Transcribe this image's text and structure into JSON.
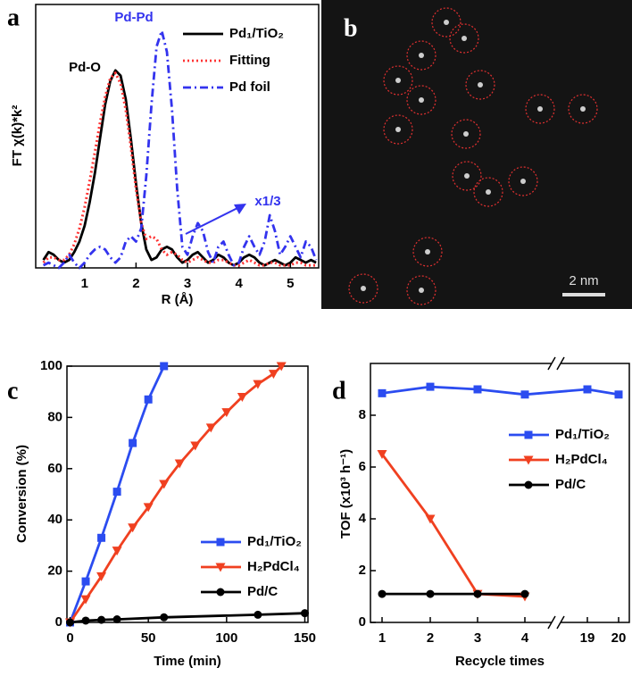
{
  "chart_data": [
    {
      "type": "line",
      "panel_label": "a",
      "xlabel": "R (Å)",
      "ylabel": "FT χ(k)*k²",
      "x": [
        0.2,
        0.3,
        0.4,
        0.5,
        0.6,
        0.7,
        0.8,
        0.9,
        1.0,
        1.1,
        1.2,
        1.3,
        1.4,
        1.5,
        1.6,
        1.7,
        1.8,
        1.9,
        2.0,
        2.1,
        2.2,
        2.3,
        2.4,
        2.5,
        2.6,
        2.7,
        2.8,
        2.9,
        3.0,
        3.1,
        3.2,
        3.3,
        3.4,
        3.5,
        3.6,
        3.7,
        3.8,
        3.9,
        4.0,
        4.1,
        4.2,
        4.3,
        4.4,
        4.5,
        4.6,
        4.7,
        4.8,
        4.9,
        5.0,
        5.1,
        5.2,
        5.3,
        5.4,
        5.5
      ],
      "xlim": [
        0.05,
        5.55
      ],
      "xticks": [
        1,
        2,
        3,
        4,
        5
      ],
      "ylim": [
        0,
        1
      ],
      "legend": "upper right",
      "annotations": [
        {
          "text": "Pd-O",
          "color": "#000000"
        },
        {
          "text": "Pd-Pd",
          "color": "#3333ee"
        },
        {
          "text": "x1/3",
          "color": "#3333ee"
        }
      ],
      "series": [
        {
          "name": "Pd₁/TiO₂",
          "color": "#000000",
          "style": "solid",
          "values": [
            0.03,
            0.06,
            0.05,
            0.03,
            0.02,
            0.03,
            0.06,
            0.1,
            0.16,
            0.25,
            0.36,
            0.49,
            0.62,
            0.71,
            0.75,
            0.73,
            0.64,
            0.49,
            0.32,
            0.17,
            0.07,
            0.03,
            0.04,
            0.07,
            0.08,
            0.07,
            0.04,
            0.02,
            0.03,
            0.05,
            0.06,
            0.04,
            0.02,
            0.03,
            0.05,
            0.04,
            0.02,
            0.01,
            0.02,
            0.04,
            0.05,
            0.04,
            0.02,
            0.01,
            0.02,
            0.03,
            0.02,
            0.01,
            0.02,
            0.04,
            0.03,
            0.02,
            0.03,
            0.02
          ]
        },
        {
          "name": "Fitting",
          "color": "#ff3333",
          "style": "dotted",
          "values": [
            0.02,
            0.04,
            0.04,
            0.03,
            0.03,
            0.05,
            0.09,
            0.15,
            0.23,
            0.33,
            0.44,
            0.55,
            0.65,
            0.72,
            0.74,
            0.7,
            0.6,
            0.46,
            0.3,
            0.17,
            0.11,
            0.12,
            0.11,
            0.07,
            0.05,
            0.06,
            0.05,
            0.03,
            0.02,
            0.03,
            0.04,
            0.03,
            0.02,
            0.02,
            0.03,
            0.03,
            0.02,
            0.01,
            0.01,
            0.02,
            0.03,
            0.02,
            0.01,
            0.01,
            0.02,
            0.02,
            0.01,
            0.01,
            0.01,
            0.02,
            0.02,
            0.01,
            0.01,
            0.01
          ]
        },
        {
          "name": "Pd foil",
          "color": "#3333ee",
          "style": "dashdot",
          "values": [
            0.01,
            0.02,
            0.01,
            0.0,
            0.02,
            0.05,
            0.02,
            0.0,
            0.02,
            0.05,
            0.07,
            0.08,
            0.07,
            0.04,
            0.02,
            0.04,
            0.1,
            0.12,
            0.1,
            0.15,
            0.35,
            0.62,
            0.84,
            0.9,
            0.82,
            0.6,
            0.3,
            0.08,
            0.05,
            0.12,
            0.17,
            0.14,
            0.06,
            0.02,
            0.08,
            0.1,
            0.05,
            0.01,
            0.02,
            0.08,
            0.12,
            0.08,
            0.05,
            0.1,
            0.2,
            0.14,
            0.05,
            0.08,
            0.12,
            0.08,
            0.04,
            0.1,
            0.08,
            0.03
          ]
        }
      ]
    },
    {
      "type": "line",
      "panel_label": "c",
      "xlabel": "Time (min)",
      "ylabel": "Conversion (%)",
      "xlim": [
        -2,
        152
      ],
      "ylim": [
        0,
        100
      ],
      "xticks": [
        0,
        50,
        100,
        150
      ],
      "yticks": [
        0,
        20,
        40,
        60,
        80,
        100
      ],
      "legend": "lower right",
      "series": [
        {
          "name": "Pd₁/TiO₂",
          "color": "#2b4cf0",
          "marker": "square",
          "x": [
            0,
            10,
            20,
            30,
            40,
            50,
            60
          ],
          "values": [
            0,
            16,
            33,
            51,
            70,
            87,
            100
          ]
        },
        {
          "name": "H₂PdCl₄",
          "color": "#f04020",
          "marker": "triangle-down",
          "x": [
            0,
            10,
            20,
            30,
            40,
            50,
            60,
            70,
            80,
            90,
            100,
            110,
            120,
            130,
            135
          ],
          "values": [
            0,
            9,
            18,
            28,
            37,
            45,
            54,
            62,
            69,
            76,
            82,
            88,
            93,
            97,
            100
          ]
        },
        {
          "name": "Pd/C",
          "color": "#000000",
          "marker": "circle",
          "x": [
            0,
            10,
            20,
            30,
            60,
            120,
            150
          ],
          "values": [
            0,
            0.7,
            1,
            1.2,
            2,
            3,
            3.6
          ]
        }
      ]
    },
    {
      "type": "line",
      "panel_label": "d",
      "xlabel": "Recycle times",
      "ylabel": "TOF (x10³ h⁻¹)",
      "categories": [
        "1",
        "2",
        "3",
        "4",
        "19",
        "20"
      ],
      "axis_break": true,
      "ylim": [
        0,
        10
      ],
      "yticks": [
        0,
        2,
        4,
        6,
        8
      ],
      "legend": "upper right",
      "series": [
        {
          "name": "Pd₁/TiO₂",
          "color": "#2b4cf0",
          "marker": "square",
          "values": [
            8.85,
            9.1,
            9.0,
            8.8,
            9.0,
            8.8
          ]
        },
        {
          "name": "H₂PdCl₄",
          "color": "#f04020",
          "marker": "triangle-down",
          "values": [
            6.5,
            4.0,
            1.1,
            1.0,
            null,
            null
          ]
        },
        {
          "name": "Pd/C",
          "color": "#000000",
          "marker": "circle",
          "values": [
            1.1,
            1.1,
            1.1,
            1.1,
            null,
            null
          ]
        }
      ]
    }
  ],
  "image": {
    "panel_label": "b",
    "scale_bar": "2 nm"
  }
}
